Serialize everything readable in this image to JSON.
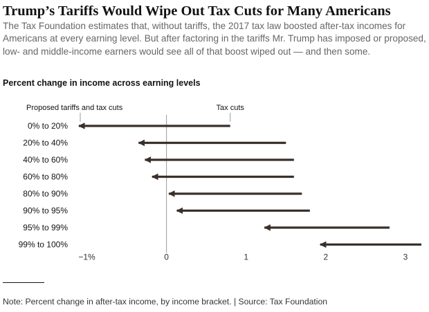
{
  "header": {
    "title": "Trump’s Tariffs Would Wipe Out Tax Cuts for Many Americans",
    "subtitle": "The Tax Foundation estimates that, without tariffs, the 2017 tax law boosted after-tax incomes for Americans at every earning level. But after factoring in the tariffs Mr. Trump has imposed or proposed, low- and middle-income earners would see all of that boost wiped out — and then some."
  },
  "footer": {
    "note": "Note: Percent change in after-tax income, by income bracket. | Source: Tax Foundation"
  },
  "colors": {
    "arrow": "#3a302b",
    "zero_line": "#999999",
    "axis_text": "#333333"
  },
  "chart_data": {
    "type": "arrow",
    "title": "Percent change in income across earning levels",
    "categories": [
      "0% to 20%",
      "20% to 40%",
      "40% to 60%",
      "60% to 80%",
      "80% to 90%",
      "90% to 95%",
      "95% to 99%",
      "99% to 100%"
    ],
    "series": [
      {
        "name": "Tax cuts",
        "values": [
          0.8,
          1.5,
          1.6,
          1.6,
          1.7,
          1.8,
          2.8,
          3.2
        ]
      },
      {
        "name": "Proposed tariffs and tax cuts",
        "values": [
          -1.1,
          -0.35,
          -0.27,
          -0.18,
          0.03,
          0.13,
          1.23,
          1.93
        ]
      }
    ],
    "xlim": [
      -1.1,
      3.2
    ],
    "x_ticks": [
      -1,
      0,
      1,
      2,
      3
    ],
    "x_tick_labels": [
      "−1%",
      "0",
      "1",
      "2",
      "3"
    ],
    "labels": {
      "start_label": "Tax cuts",
      "end_label": "Proposed tariffs and tax cuts"
    },
    "grid": false,
    "legend": "none"
  }
}
